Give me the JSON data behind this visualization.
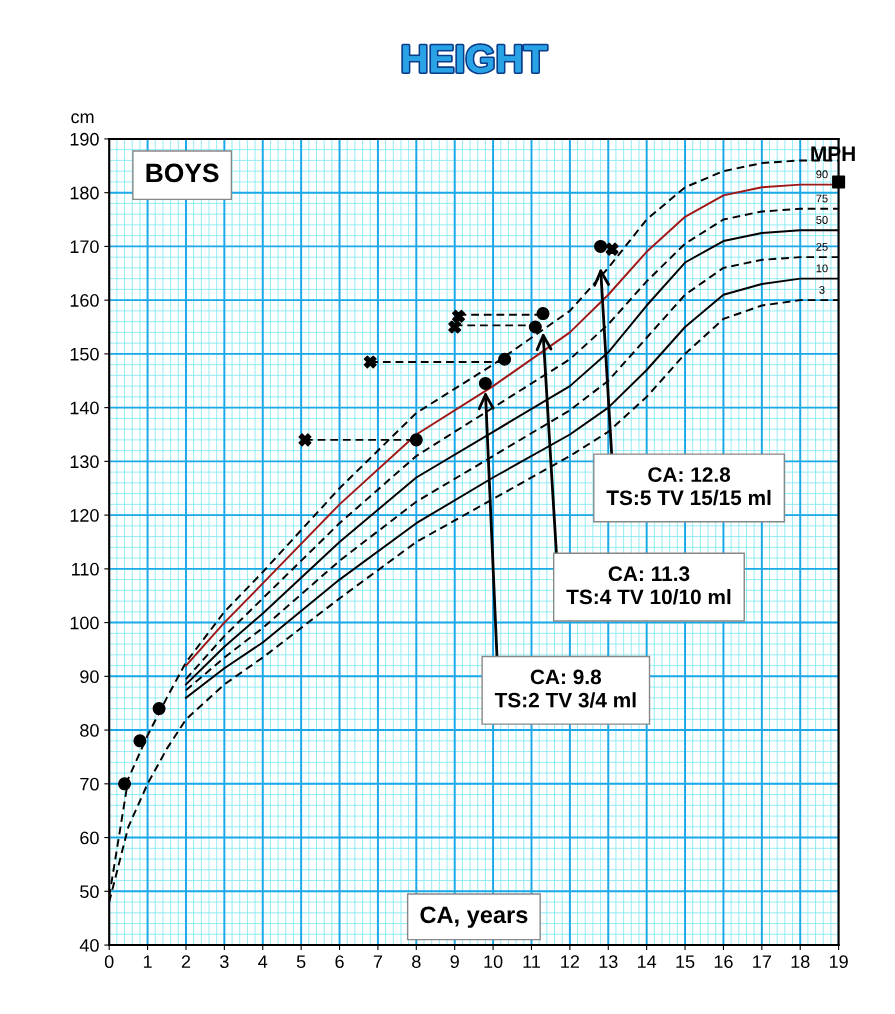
{
  "chart_data": {
    "type": "line",
    "title": "HEIGHT",
    "ylabel": "cm",
    "xlabel": "CA, years",
    "xlim": [
      0,
      19
    ],
    "ylim": [
      40,
      190
    ],
    "xticks": [
      0,
      1,
      2,
      3,
      4,
      5,
      6,
      7,
      8,
      9,
      10,
      11,
      12,
      13,
      14,
      15,
      16,
      17,
      18,
      19
    ],
    "yticks": [
      40,
      50,
      60,
      70,
      80,
      90,
      100,
      110,
      120,
      130,
      140,
      150,
      160,
      170,
      180,
      190
    ],
    "grid": true,
    "annotations": [
      "BOYS",
      {
        "text": "CA: 12.8\nTS:5 TV 15/15 ml",
        "x": 12.8,
        "y": 166
      },
      {
        "text": "CA: 11.3\nTS:4 TV 10/10 ml",
        "x": 11.3,
        "y": 154
      },
      {
        "text": "CA: 9.8\nTS:2 TV 3/4 ml",
        "x": 9.8,
        "y": 143
      }
    ],
    "series": [
      {
        "line_style": "dashed",
        "color": "#000000",
        "x": [
          0,
          0.5,
          1,
          1.5,
          2,
          3,
          4,
          6,
          8,
          10,
          12,
          13,
          14,
          15,
          16,
          17,
          18,
          19
        ],
        "values": [
          49,
          71,
          79,
          86,
          92.6,
          102,
          109.4,
          125,
          139,
          148,
          158,
          166,
          175,
          181,
          184,
          185.5,
          186,
          186
        ]
      },
      {
        "line_style": "solid",
        "name": "90",
        "color": "#a01818",
        "x": [
          2,
          3,
          4,
          6,
          8,
          10,
          12,
          13,
          14,
          15,
          16,
          17,
          18,
          19
        ],
        "values": [
          92,
          100,
          107.3,
          122,
          135,
          144,
          154,
          161,
          169,
          175.5,
          179.5,
          181,
          181.5,
          181.5
        ]
      },
      {
        "line_style": "dashed",
        "name": "75",
        "color": "#000000",
        "x": [
          2,
          3,
          4,
          6,
          8,
          10,
          12,
          13,
          14,
          15,
          16,
          17,
          18,
          19
        ],
        "values": [
          89.5,
          97.5,
          104.5,
          118.5,
          131,
          140,
          149,
          155.5,
          163.5,
          170.5,
          175,
          176.5,
          177,
          177
        ]
      },
      {
        "line_style": "solid",
        "name": "50",
        "color": "#000000",
        "x": [
          2,
          3,
          4,
          6,
          8,
          10,
          12,
          13,
          14,
          15,
          16,
          17,
          18,
          19
        ],
        "values": [
          88.5,
          95.5,
          101.7,
          115,
          127,
          135.5,
          144,
          150.3,
          159,
          167,
          171,
          172.5,
          173,
          173
        ]
      },
      {
        "line_style": "dashed",
        "name": "25",
        "color": "#000000",
        "x": [
          2,
          3,
          4,
          6,
          8,
          10,
          12,
          13,
          14,
          15,
          16,
          17,
          18,
          19
        ],
        "values": [
          87.4,
          93.5,
          99,
          111.5,
          122.5,
          131,
          139.5,
          145,
          153,
          161,
          166,
          167.5,
          168,
          168
        ]
      },
      {
        "line_style": "solid",
        "name": "10",
        "color": "#000000",
        "x": [
          2,
          3,
          4,
          6,
          8,
          10,
          12,
          13,
          14,
          15,
          16,
          17,
          18,
          19
        ],
        "values": [
          86,
          91.5,
          96.3,
          108,
          118.5,
          127,
          135,
          140,
          147,
          155,
          161,
          163,
          164,
          164
        ]
      },
      {
        "line_style": "dashed",
        "name": "3",
        "color": "#000000",
        "x": [
          0,
          0.5,
          1,
          1.5,
          2,
          3,
          4,
          6,
          8,
          10,
          12,
          13,
          14,
          15,
          16,
          17,
          18,
          19
        ],
        "values": [
          48,
          62,
          70,
          76.5,
          82,
          88.5,
          93.5,
          104.5,
          115,
          123,
          131,
          135.5,
          142,
          150,
          156.5,
          159,
          160,
          160
        ]
      },
      {
        "line_style": "dashed",
        "color": "#000000",
        "x": [
          5.1,
          8
        ],
        "values": [
          134,
          134
        ]
      },
      {
        "line_style": "dashed",
        "color": "#000000",
        "x": [
          6.8,
          10.3
        ],
        "values": [
          148.5,
          148.5
        ]
      },
      {
        "line_style": "dashed",
        "color": "#000000",
        "x": [
          9,
          11.1
        ],
        "values": [
          155.3,
          155.3
        ]
      },
      {
        "line_style": "dashed",
        "color": "#000000",
        "x": [
          9.1,
          11.3
        ],
        "values": [
          157.3,
          157.3
        ]
      },
      {
        "type": "scatter",
        "marker": "circle",
        "color": "#000000",
        "x": [
          0.4,
          0.8,
          1.3,
          8,
          9.8,
          10.3,
          11.1,
          11.3,
          12.8
        ],
        "values": [
          70,
          78,
          84,
          134,
          144.5,
          149,
          155,
          157.5,
          170
        ]
      },
      {
        "type": "scatter",
        "marker": "cross",
        "color": "#000000",
        "x": [
          5.1,
          6.8,
          9,
          9.1,
          13.1
        ],
        "values": [
          134,
          148.5,
          155,
          157,
          169.5
        ]
      },
      {
        "type": "scatter",
        "marker": "square",
        "name": "MPH",
        "color": "#000000",
        "x": [
          19
        ],
        "values": [
          182
        ]
      }
    ]
  }
}
